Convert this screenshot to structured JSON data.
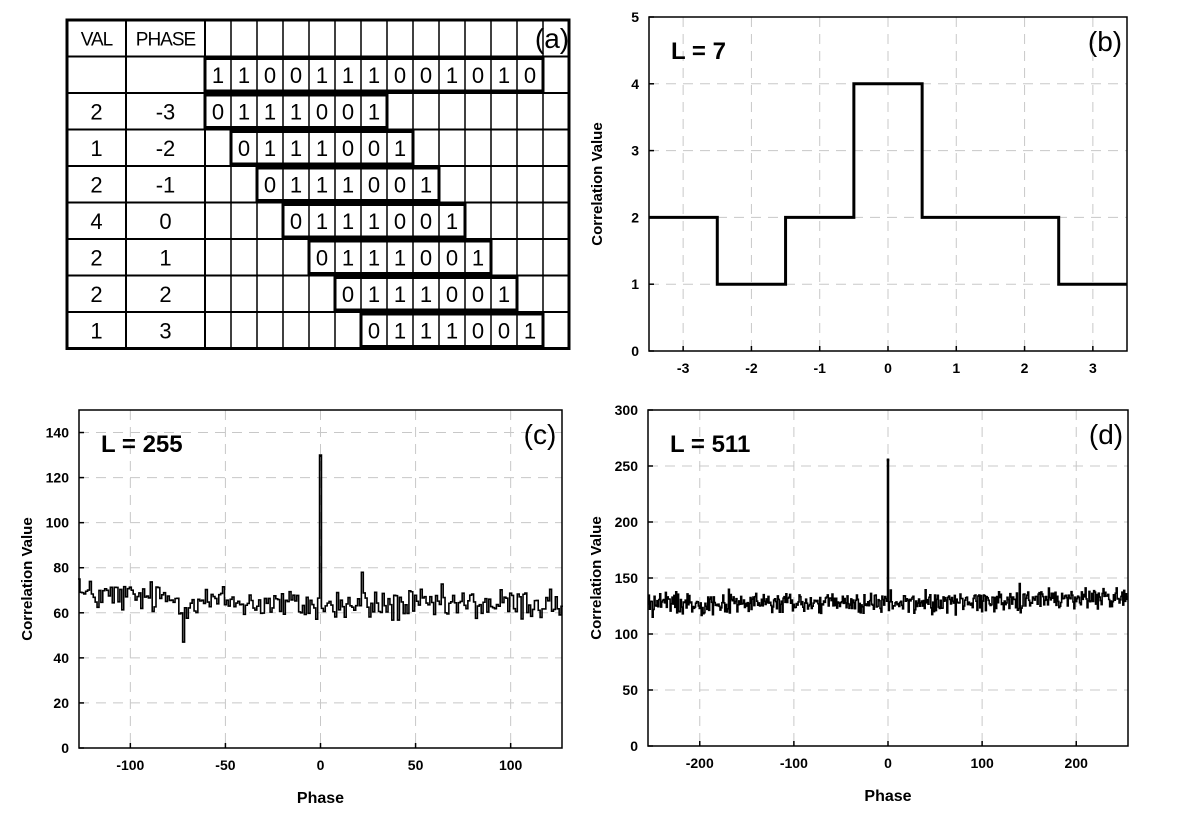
{
  "table_a": {
    "panel_label": "(a)",
    "header_val": "VAL",
    "header_phase": "PHASE",
    "reference_sequence": [
      "1",
      "1",
      "0",
      "0",
      "1",
      "1",
      "1",
      "0",
      "0",
      "1",
      "0",
      "1",
      "0"
    ],
    "shift_sequence": [
      "0",
      "1",
      "1",
      "1",
      "0",
      "0",
      "1"
    ],
    "rows": [
      {
        "val": "2",
        "phase": "-3",
        "offset": 0
      },
      {
        "val": "1",
        "phase": "-2",
        "offset": 1
      },
      {
        "val": "2",
        "phase": "-1",
        "offset": 2
      },
      {
        "val": "4",
        "phase": "0",
        "offset": 3
      },
      {
        "val": "2",
        "phase": "1",
        "offset": 4
      },
      {
        "val": "2",
        "phase": "2",
        "offset": 5
      },
      {
        "val": "1",
        "phase": "3",
        "offset": 6
      }
    ]
  },
  "chart_data": [
    {
      "id": "b",
      "type": "line",
      "panel_label": "(b)",
      "annotation": "L = 7",
      "xlabel": "",
      "ylabel": "Correlation Value",
      "xlim": [
        -3.5,
        3.5
      ],
      "ylim": [
        0,
        5
      ],
      "xticks": [
        -3,
        -2,
        -1,
        0,
        1,
        2,
        3
      ],
      "yticks": [
        0,
        1,
        2,
        3,
        4,
        5
      ],
      "grid": true,
      "step": true,
      "series": [
        {
          "x": [
            -3,
            -2,
            -1,
            0,
            1,
            2,
            3
          ],
          "y": [
            2,
            1,
            2,
            4,
            2,
            2,
            1
          ]
        }
      ]
    },
    {
      "id": "c",
      "type": "line",
      "panel_label": "(c)",
      "annotation": "L = 255",
      "xlabel": "Phase",
      "ylabel": "Correlation Value",
      "xlim": [
        -127,
        127
      ],
      "ylim": [
        0,
        150
      ],
      "xticks": [
        -100,
        -50,
        0,
        50,
        100
      ],
      "yticks": [
        0,
        20,
        40,
        60,
        80,
        100,
        120,
        140
      ],
      "grid": true,
      "peak": {
        "x": 0,
        "y": 130
      },
      "noise": {
        "x_range": [
          -127,
          127
        ],
        "mean_start": 68,
        "mean_mid": 63,
        "mean_end": 64,
        "amplitude": 6,
        "notable_points": [
          [
            -72,
            47
          ],
          [
            22,
            78
          ],
          [
            -127,
            75
          ]
        ]
      }
    },
    {
      "id": "d",
      "type": "line",
      "panel_label": "(d)",
      "annotation": "L = 511",
      "xlabel": "Phase",
      "ylabel": "Correlation Value",
      "xlim": [
        -255,
        255
      ],
      "ylim": [
        0,
        300
      ],
      "xticks": [
        -200,
        -100,
        0,
        100,
        200
      ],
      "yticks": [
        0,
        50,
        100,
        150,
        200,
        250,
        300
      ],
      "grid": true,
      "peak": {
        "x": 0,
        "y": 256
      },
      "noise": {
        "x_range": [
          -255,
          255
        ],
        "mean_start": 128,
        "mean_mid": 127,
        "mean_end": 133,
        "amplitude": 8,
        "notable_points": [
          [
            140,
            145
          ],
          [
            -250,
            115
          ]
        ]
      }
    }
  ]
}
